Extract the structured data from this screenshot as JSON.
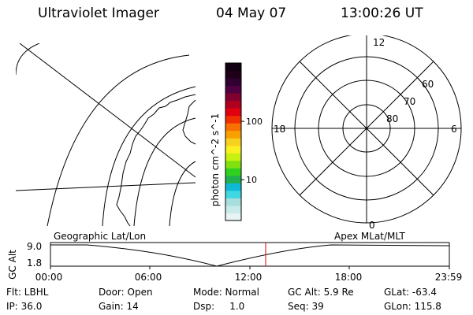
{
  "header": {
    "instrument": "Ultraviolet Imager",
    "date": "04 May 07",
    "time": "13:00:26 UT"
  },
  "colorbar": {
    "label": "photon cm^-2 s^-1",
    "ticks": [
      {
        "label": "100",
        "value": 100
      },
      {
        "label": "10",
        "value": 10
      }
    ],
    "colors": [
      "#e8f4f4",
      "#c8eaea",
      "#a8dede",
      "#40d8e0",
      "#10b8d8",
      "#20b050",
      "#30d020",
      "#80e010",
      "#c8f010",
      "#f8f020",
      "#f8d020",
      "#f8a000",
      "#f87000",
      "#f03000",
      "#e00010",
      "#b00020",
      "#800030",
      "#500040",
      "#300030",
      "#200018",
      "#100010"
    ]
  },
  "geographic_map": {
    "title": "Geographic Lat/Lon"
  },
  "polar_plot": {
    "title": "Apex MLat/MLT",
    "mlt_labels": {
      "top": "12",
      "left": "18",
      "right": "6",
      "bottom": "0"
    },
    "lat_labels": [
      "60",
      "70",
      "80"
    ]
  },
  "orbit_plot": {
    "ylabel": "GC Alt",
    "yticks": [
      "9.0",
      "1.8"
    ],
    "xticks": [
      "00:00",
      "06:00",
      "12:00",
      "18:00",
      "23:59"
    ],
    "current_time_marker": "13:00",
    "accent_color": "#e00000"
  },
  "info": {
    "filter": "Flt: LBHL",
    "ip": "IP: 36.0",
    "door": "Door: Open",
    "gain": "Gain: 14",
    "mode": "Mode: Normal",
    "dsp": "Dsp:     1.0",
    "gc_alt": "GC Alt: 5.9 Re",
    "seq": "Seq: 39",
    "glat": "GLat: -63.4",
    "glon": "GLon: 115.8"
  }
}
